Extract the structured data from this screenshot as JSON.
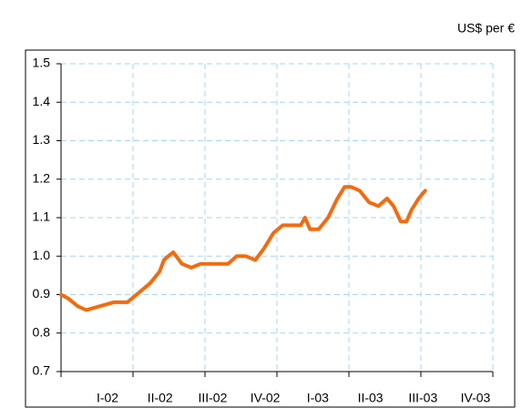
{
  "chart_data": {
    "type": "line",
    "title": "US$ per €",
    "categories": [
      "I-02",
      "II-02",
      "III-02",
      "IV-02",
      "I-03",
      "II-03",
      "III-03",
      "IV-03"
    ],
    "x": [
      0,
      0.1,
      0.23,
      0.35,
      0.54,
      0.73,
      0.92,
      1.05,
      1.24,
      1.37,
      1.43,
      1.49,
      1.56,
      1.68,
      1.81,
      1.94,
      2.13,
      2.32,
      2.44,
      2.57,
      2.7,
      2.82,
      2.95,
      3.08,
      3.2,
      3.33,
      3.39,
      3.46,
      3.58,
      3.71,
      3.84,
      3.94,
      4.03,
      4.15,
      4.28,
      4.41,
      4.53,
      4.62,
      4.72,
      4.8,
      4.87,
      4.97,
      5.06
    ],
    "series": [
      {
        "name": "US$ per €",
        "color": "#f26b0f",
        "values": [
          0.9,
          0.89,
          0.87,
          0.86,
          0.87,
          0.88,
          0.88,
          0.9,
          0.93,
          0.96,
          0.99,
          1.0,
          1.01,
          0.98,
          0.97,
          0.98,
          0.98,
          0.98,
          1.0,
          1.0,
          0.99,
          1.02,
          1.06,
          1.08,
          1.08,
          1.08,
          1.1,
          1.07,
          1.07,
          1.1,
          1.15,
          1.18,
          1.18,
          1.17,
          1.14,
          1.13,
          1.15,
          1.13,
          1.09,
          1.09,
          1.12,
          1.15,
          1.17
        ]
      }
    ],
    "xlim": [
      0,
      6
    ],
    "xticks": [
      0,
      1,
      2,
      3,
      4,
      5,
      6
    ],
    "ylim": [
      0.7,
      1.5
    ],
    "yticks": [
      {
        "value": 0.7,
        "label": "0.7"
      },
      {
        "value": 0.8,
        "label": "0.8"
      },
      {
        "value": 0.9,
        "label": "0.9"
      },
      {
        "value": 1.0,
        "label": "1.0"
      },
      {
        "value": 1.1,
        "label": "1.1"
      },
      {
        "value": 1.2,
        "label": "1.2"
      },
      {
        "value": 1.3,
        "label": "1.3"
      },
      {
        "value": 1.4,
        "label": "1.4"
      },
      {
        "value": 1.5,
        "label": "1.5"
      }
    ],
    "grid": true
  }
}
